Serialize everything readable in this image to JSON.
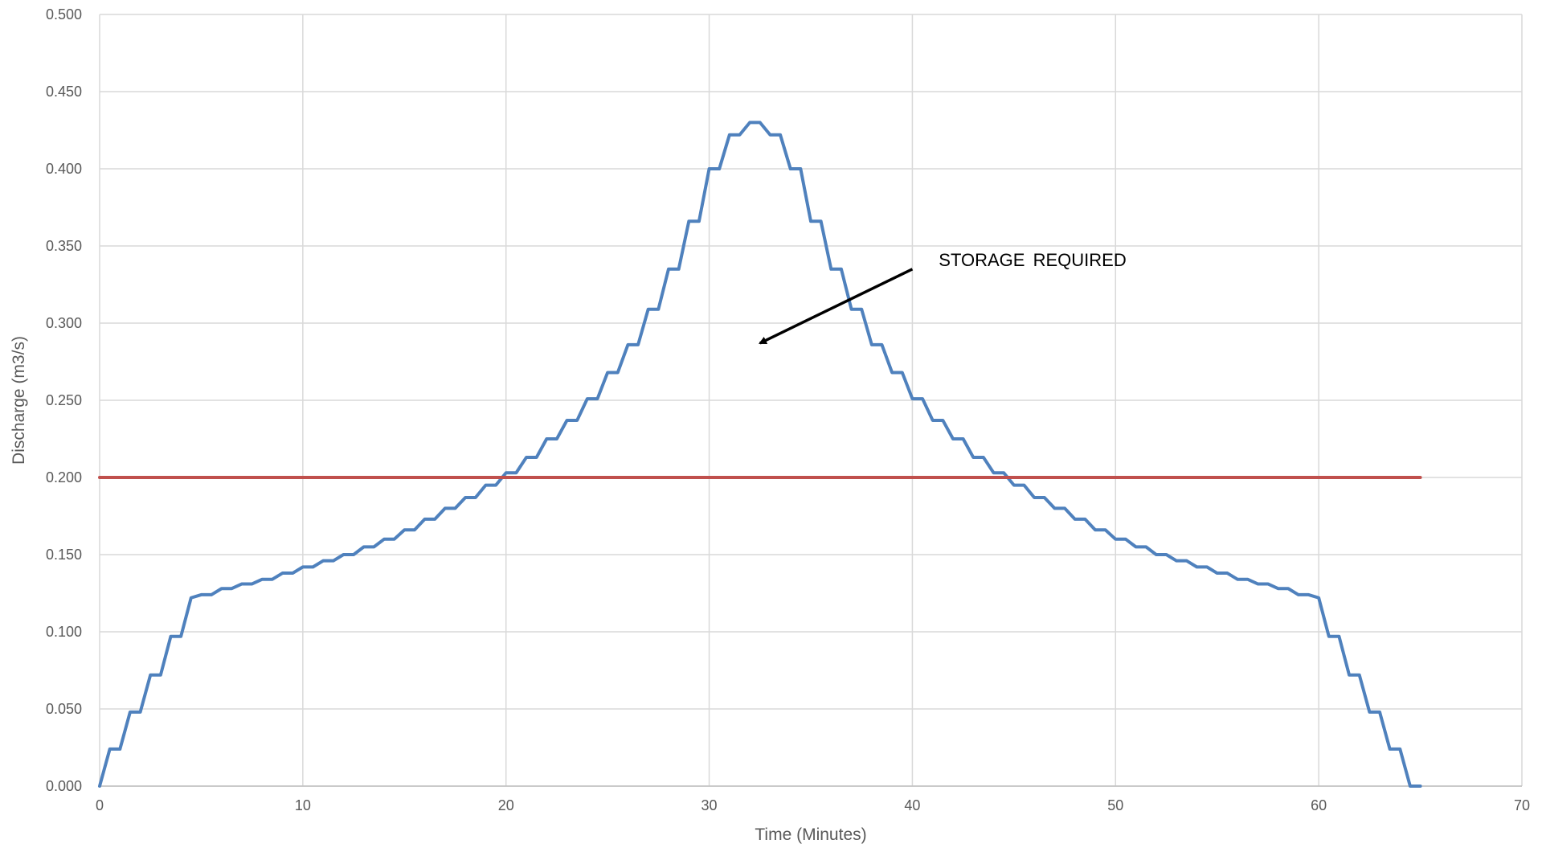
{
  "chart_data": {
    "type": "line",
    "title": "",
    "xlabel": "Time (Minutes)",
    "ylabel": "Discharge (m3/s)",
    "xlim": [
      0,
      70
    ],
    "ylim": [
      0,
      0.5
    ],
    "x_ticks": [
      "0",
      "10",
      "20",
      "30",
      "40",
      "50",
      "60",
      "70"
    ],
    "y_ticks": [
      "0.000",
      "0.050",
      "0.100",
      "0.150",
      "0.200",
      "0.250",
      "0.300",
      "0.350",
      "0.400",
      "0.450",
      "0.500"
    ],
    "grid": true,
    "legend": "none",
    "series": [
      {
        "color": "#4f81bd",
        "step": 0.5,
        "x": [
          0,
          0.5,
          1,
          1.5,
          2,
          2.5,
          3,
          3.5,
          4,
          4.5,
          5,
          5.5,
          6,
          6.5,
          7,
          7.5,
          8,
          8.5,
          9,
          9.5,
          10,
          10.5,
          11,
          11.5,
          12,
          12.5,
          13,
          13.5,
          14,
          14.5,
          15,
          15.5,
          16,
          16.5,
          17,
          17.5,
          18,
          18.5,
          19,
          19.5,
          20,
          20.5,
          21,
          21.5,
          22,
          22.5,
          23,
          23.5,
          24,
          24.5,
          25,
          25.5,
          26,
          26.5,
          27,
          27.5,
          28,
          28.5,
          29,
          29.5,
          30,
          30.5,
          31,
          31.5,
          32,
          32.5,
          33,
          33.5,
          34,
          34.5,
          35,
          35.5,
          36,
          36.5,
          37,
          37.5,
          38,
          38.5,
          39,
          39.5,
          40,
          40.5,
          41,
          41.5,
          42,
          42.5,
          43,
          43.5,
          44,
          44.5,
          45,
          45.5,
          46,
          46.5,
          47,
          47.5,
          48,
          48.5,
          49,
          49.5,
          50,
          50.5,
          51,
          51.5,
          52,
          52.5,
          53,
          53.5,
          54,
          54.5,
          55,
          55.5,
          56,
          56.5,
          57,
          57.5,
          58,
          58.5,
          59,
          59.5,
          60,
          60.5,
          61,
          61.5,
          62,
          62.5,
          63,
          63.5,
          64,
          64.5,
          65
        ],
        "y": [
          0.0,
          0.024,
          0.024,
          0.048,
          0.048,
          0.072,
          0.072,
          0.097,
          0.097,
          0.122,
          0.124,
          0.124,
          0.128,
          0.128,
          0.131,
          0.131,
          0.134,
          0.134,
          0.138,
          0.138,
          0.142,
          0.142,
          0.146,
          0.146,
          0.15,
          0.15,
          0.155,
          0.155,
          0.16,
          0.16,
          0.166,
          0.166,
          0.173,
          0.173,
          0.18,
          0.18,
          0.187,
          0.187,
          0.195,
          0.195,
          0.203,
          0.203,
          0.213,
          0.213,
          0.225,
          0.225,
          0.237,
          0.237,
          0.251,
          0.251,
          0.268,
          0.268,
          0.286,
          0.286,
          0.309,
          0.309,
          0.335,
          0.335,
          0.366,
          0.366,
          0.4,
          0.4,
          0.422,
          0.422,
          0.43,
          0.43,
          0.422,
          0.422,
          0.4,
          0.4,
          0.366,
          0.366,
          0.335,
          0.335,
          0.309,
          0.309,
          0.286,
          0.286,
          0.268,
          0.268,
          0.251,
          0.251,
          0.237,
          0.237,
          0.225,
          0.225,
          0.213,
          0.213,
          0.203,
          0.203,
          0.195,
          0.195,
          0.187,
          0.187,
          0.18,
          0.18,
          0.173,
          0.173,
          0.166,
          0.166,
          0.16,
          0.16,
          0.155,
          0.155,
          0.15,
          0.15,
          0.146,
          0.146,
          0.142,
          0.142,
          0.138,
          0.138,
          0.134,
          0.134,
          0.131,
          0.131,
          0.128,
          0.128,
          0.124,
          0.124,
          0.122,
          0.097,
          0.097,
          0.072,
          0.072,
          0.048,
          0.048,
          0.024,
          0.024,
          0.0,
          0.0
        ]
      },
      {
        "color": "#c0504d",
        "x": [
          0,
          65
        ],
        "y": [
          0.2,
          0.2
        ]
      }
    ],
    "annotations": [
      {
        "text": "STORAGE REQUIRED",
        "text_at": [
          41.3,
          0.337
        ],
        "arrow_from": [
          40.0,
          0.335
        ],
        "arrow_to": [
          32.5,
          0.287
        ]
      }
    ]
  }
}
